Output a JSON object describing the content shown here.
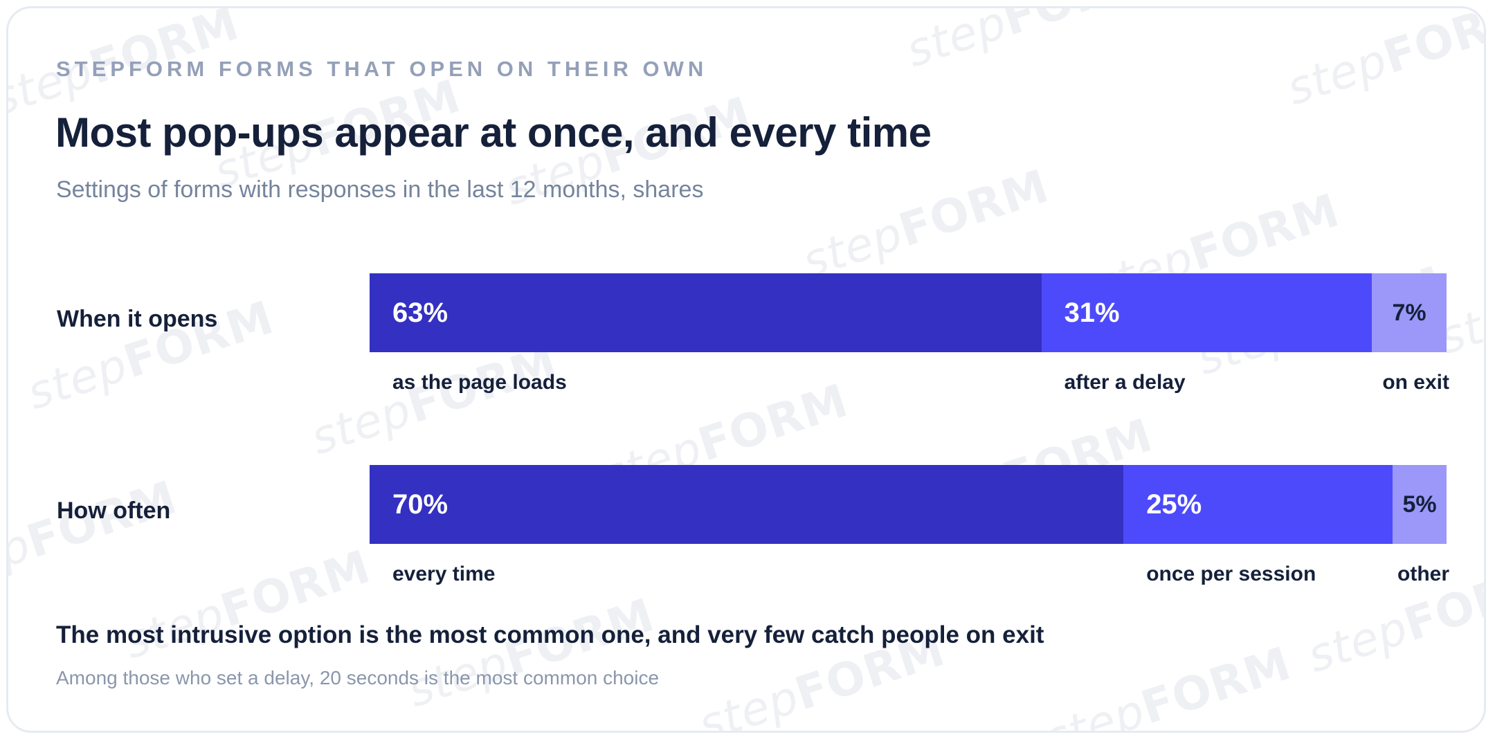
{
  "header": {
    "eyebrow": "STEPFORM FORMS THAT OPEN ON THEIR OWN",
    "title": "Most pop-ups appear at once, and every time",
    "subtitle": "Settings of forms with responses in the last 12 months, shares"
  },
  "watermark": {
    "part_a": "step",
    "part_b": "FORM"
  },
  "colors": {
    "segment_1": "#3330c2",
    "segment_2": "#4d4afb",
    "segment_3": "#9b98f9",
    "text_on_dark": "#ffffff",
    "text_on_light": "#15203a"
  },
  "chart_data": {
    "type": "bar",
    "orientation": "horizontal",
    "stacked": true,
    "unit": "%",
    "xlim": [
      0,
      100
    ],
    "grid": false,
    "rows": [
      {
        "label": "When it opens",
        "segments": [
          {
            "name": "as the page loads",
            "value": 63,
            "display": "63%"
          },
          {
            "name": "after a delay",
            "value": 31,
            "display": "31%"
          },
          {
            "name": "on exit",
            "value": 7,
            "display": "7%"
          }
        ]
      },
      {
        "label": "How often",
        "segments": [
          {
            "name": "every time",
            "value": 70,
            "display": "70%"
          },
          {
            "name": "once per session",
            "value": 25,
            "display": "25%"
          },
          {
            "name": "other",
            "value": 5,
            "display": "5%"
          }
        ]
      }
    ]
  },
  "footer": {
    "note": "The most intrusive option is the most common one, and very few catch people on exit",
    "source": "Among those who set a delay, 20 seconds is the most common choice"
  }
}
